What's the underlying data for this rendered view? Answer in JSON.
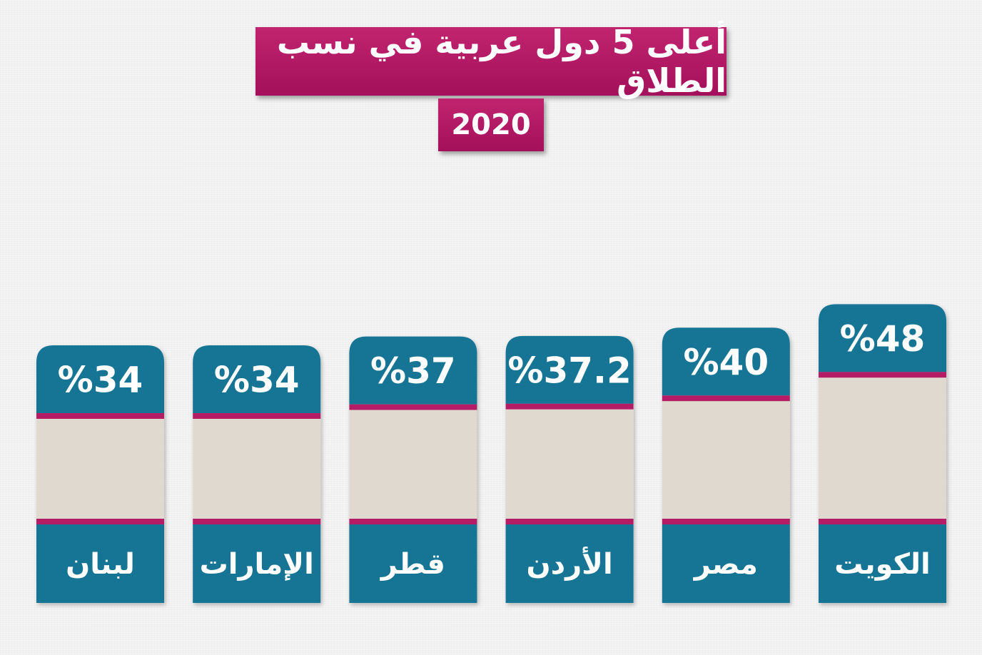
{
  "header": {
    "title": "أعلى 5 دول عربية في نسب الطلاق",
    "year": "2020"
  },
  "colors": {
    "title_bg": "#b01862",
    "bar_teal": "#137494",
    "bar_body": "#e0d9cf",
    "bar_stripe": "#b51f66"
  },
  "chart_data": {
    "type": "bar",
    "categories": [
      "لبنان",
      "الإمارات",
      "قطر",
      "الأردن",
      "مصر",
      "الكويت"
    ],
    "values": [
      34,
      34,
      37,
      37.2,
      40,
      48
    ],
    "value_labels": [
      "%34",
      "%34",
      "%37",
      "%37.2",
      "%40",
      "%48"
    ],
    "title": "أعلى 5 دول عربية في نسب الطلاق",
    "subtitle": "2020",
    "xlabel": "",
    "ylabel": "",
    "grid": false,
    "legend": "none"
  }
}
